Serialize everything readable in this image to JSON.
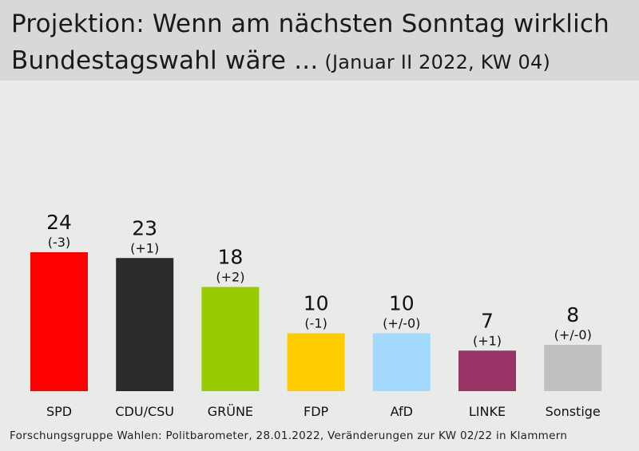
{
  "title_line1": "Projektion: Wenn am nächsten Sonntag wirklich",
  "title_line2": "Bundestagswahl wäre ...",
  "subtitle": "(Januar II 2022, KW 04)",
  "footer": "Forschungsgruppe Wahlen: Politbarometer, 28.01.2022, Veränderungen zur KW 02/22 in Klammern",
  "chart_data": {
    "type": "bar",
    "title": "Projektion: Wenn am nächsten Sonntag wirklich Bundestagswahl wäre ...",
    "subtitle": "(Januar II 2022, KW 04)",
    "categories": [
      "SPD",
      "CDU/CSU",
      "GRÜNE",
      "FDP",
      "AfD",
      "LINKE",
      "Sonstige"
    ],
    "values": [
      24,
      23,
      18,
      10,
      10,
      7,
      8
    ],
    "changes": [
      "(-3)",
      "(+1)",
      "(+2)",
      "(-1)",
      "(+/-0)",
      "(+1)",
      "(+/-0)"
    ],
    "colors": [
      "#ff0000",
      "#2b2b2b",
      "#99cc00",
      "#ffcc00",
      "#a3d9ff",
      "#993366",
      "#c0c0c0"
    ],
    "xlabel": "",
    "ylabel": "",
    "ylim": [
      0,
      24
    ],
    "grid": false,
    "legend": "none"
  }
}
